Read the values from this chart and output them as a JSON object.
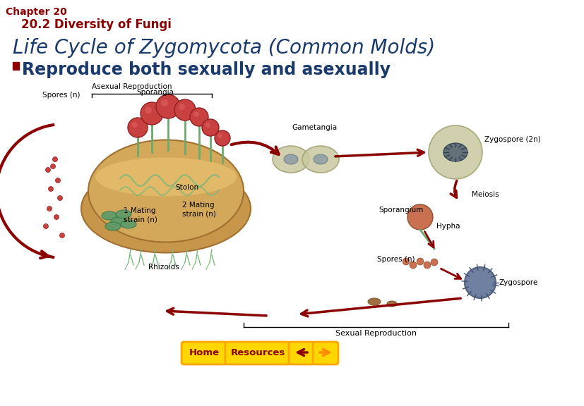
{
  "background_color": "#ffffff",
  "chapter_label": "Chapter 20",
  "chapter_label_color": "#8B0000",
  "chapter_label_fontsize": 10,
  "section_label": "20.2 Diversity of Fungi",
  "section_label_color": "#8B0000",
  "section_label_fontsize": 12,
  "title": "Life Cycle of Zygomycota (Common Molds)",
  "title_color": "#1a3a6b",
  "title_fontsize": 20,
  "bullet_color": "#8B0000",
  "bullet_text": "Reproduce both sexually and asexually",
  "bullet_text_color": "#1a3a6b",
  "bullet_fontsize": 17,
  "nav_arrow_left_color": "#8B0000",
  "nav_arrow_right_color": "#FF8C00",
  "nav_btn_fill": "#FFD700",
  "nav_btn_edge": "#FFA500",
  "nav_btn_text_color": "#8B0000",
  "diagram_labels": {
    "asexual_repro": "Asexual Reproduction",
    "sporangia": "Sporangia",
    "spores_n_left": "Spores (n)",
    "gametangia": "Gametangia",
    "zygospore_2n": "Zygospore (2n)",
    "stolon": "Stolon",
    "mating1": "1 Mating\nstrain (n)",
    "mating2": "2 Mating\nstrain (n)",
    "rhizoids": "Rhizoids",
    "sexual_repro": "Sexual Reproduction",
    "sporangium": "Sporangium",
    "hypha": "Hypha",
    "meiosis": "Meiosis",
    "spores_n_right": "Spores (n)",
    "zygospore": "Zygospore"
  },
  "dark_red": "#8B0000",
  "black": "#000000"
}
